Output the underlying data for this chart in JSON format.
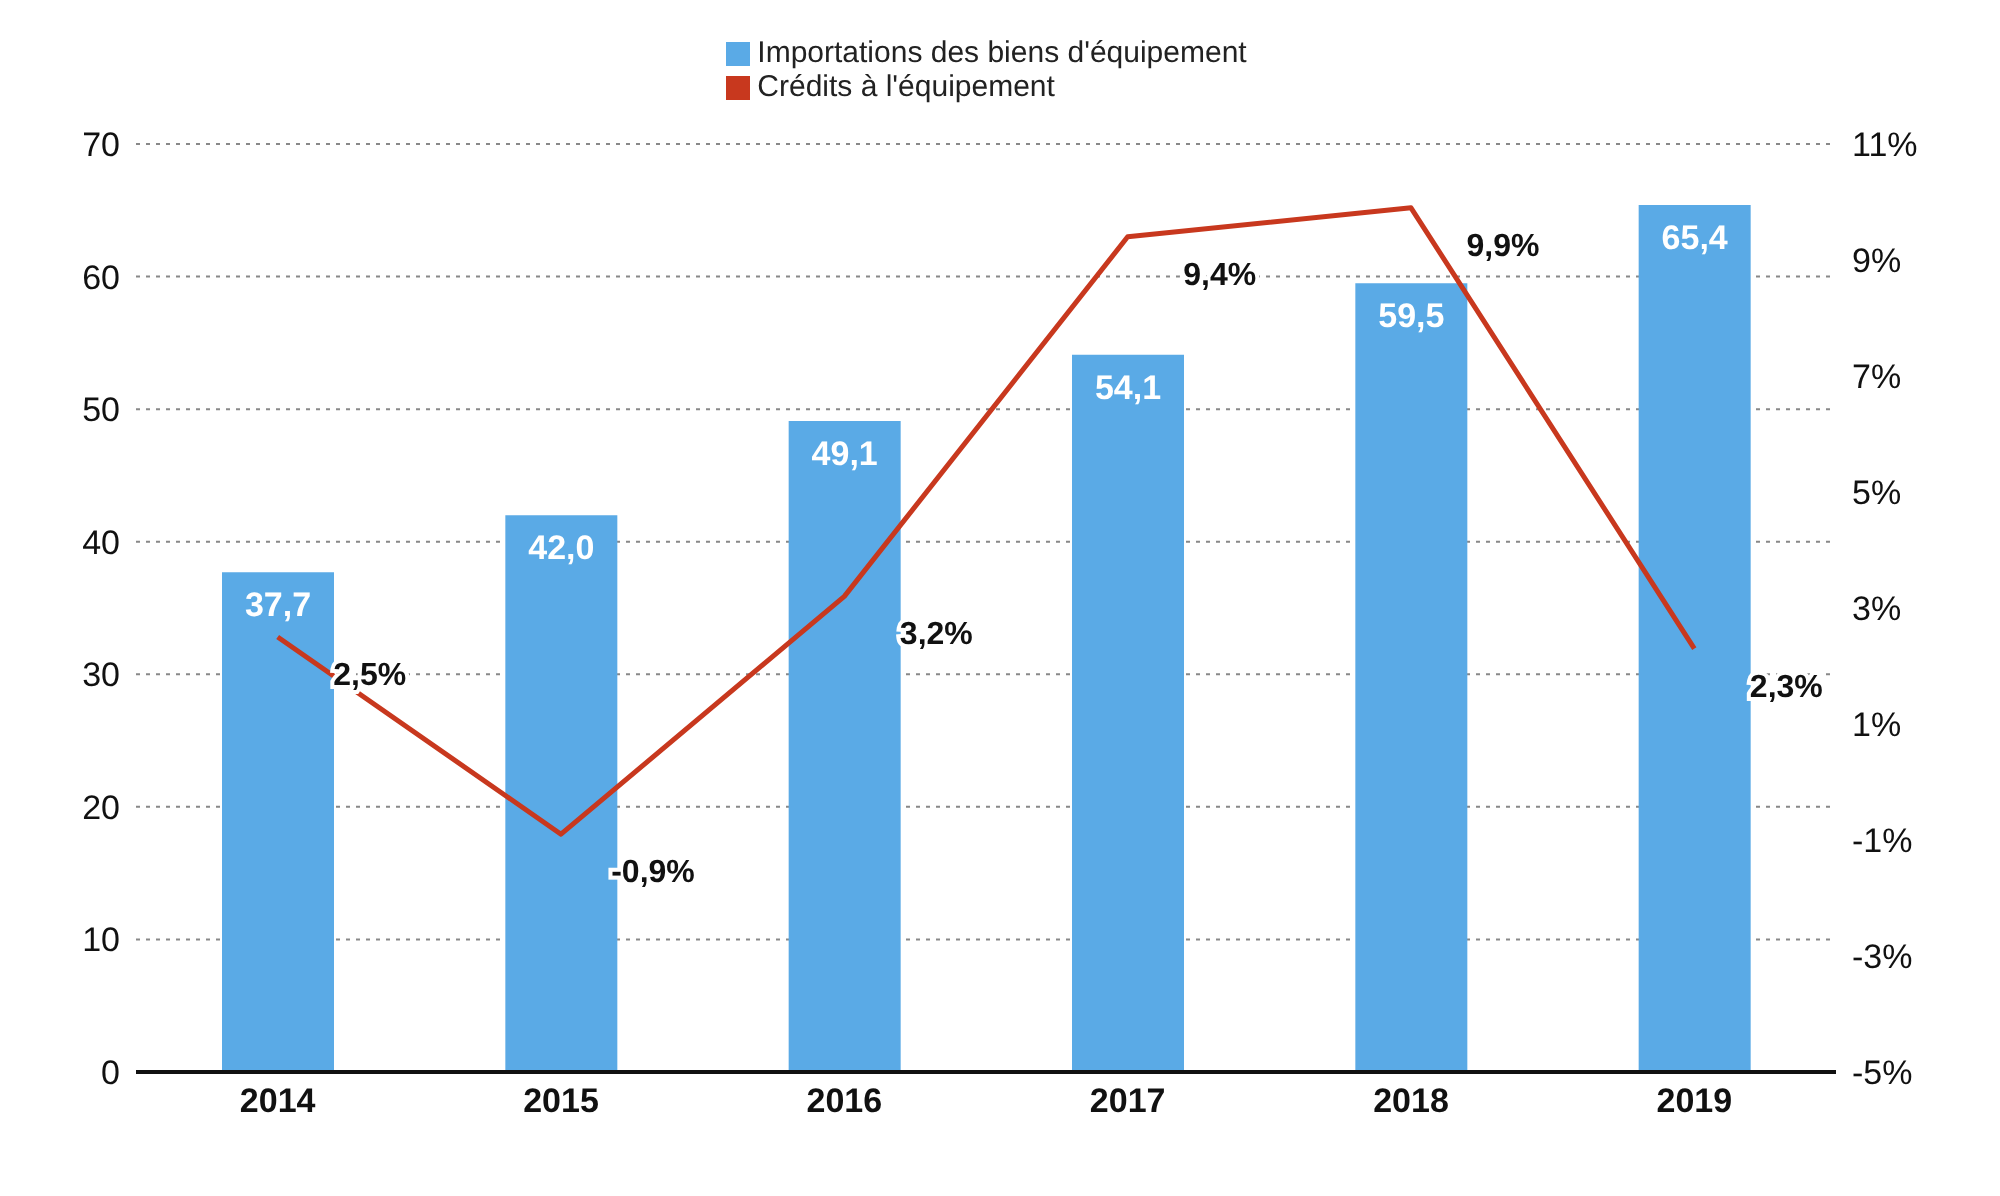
{
  "chart_data": {
    "type": "bar",
    "categories": [
      "2014",
      "2015",
      "2016",
      "2017",
      "2018",
      "2019"
    ],
    "series": [
      {
        "name": "Importations des biens d'équipement",
        "color": "#5aaae6",
        "values": [
          37.7,
          42.0,
          49.1,
          54.1,
          59.5,
          65.4
        ],
        "value_labels": [
          "37,7",
          "42,0",
          "49,1",
          "54,1",
          "59,5",
          "65,4"
        ]
      },
      {
        "name": "Crédits à l'équipement",
        "type": "line",
        "axis": "y2",
        "color": "#c8381e",
        "values": [
          2.5,
          -0.9,
          3.2,
          9.4,
          9.9,
          2.3
        ],
        "value_labels": [
          "2,5%",
          "-0,9%",
          "3,2%",
          "9,4%",
          "9,9%",
          "2,3%"
        ]
      }
    ],
    "ylim": [
      0,
      70
    ],
    "yticks": [
      0,
      10,
      20,
      30,
      40,
      50,
      60,
      70
    ],
    "y2lim": [
      -5,
      11
    ],
    "y2ticks": [
      {
        "value": -5,
        "label": "-5%"
      },
      {
        "value": -3,
        "label": "-3%"
      },
      {
        "value": -1,
        "label": "-1%"
      },
      {
        "value": 1,
        "label": "1%"
      },
      {
        "value": 3,
        "label": "3%"
      },
      {
        "value": 5,
        "label": "5%"
      },
      {
        "value": 7,
        "label": "7%"
      },
      {
        "value": 9,
        "label": "9%"
      },
      {
        "value": 11,
        "label": "11%"
      }
    ],
    "grid": "y",
    "legend": "top",
    "marker": "none"
  }
}
